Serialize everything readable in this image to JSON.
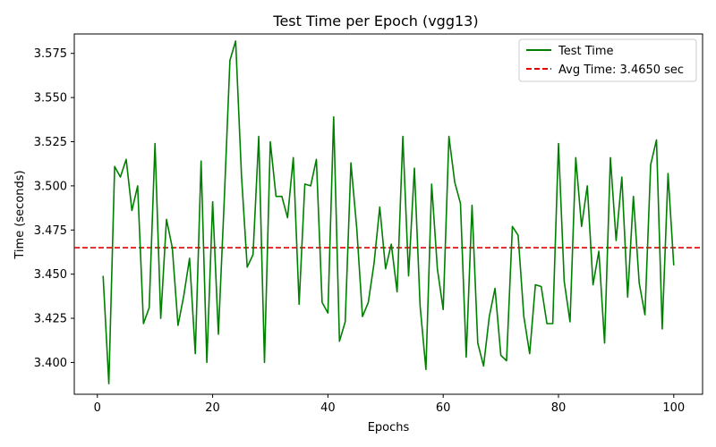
{
  "chart_data": {
    "type": "line",
    "title": "Test Time per Epoch (vgg13)",
    "xlabel": "Epochs",
    "ylabel": "Time (seconds)",
    "xlim": [
      -4,
      105
    ],
    "ylim": [
      3.382,
      3.586
    ],
    "x_ticks": [
      0,
      20,
      40,
      60,
      80,
      100
    ],
    "y_ticks": [
      3.4,
      3.425,
      3.45,
      3.475,
      3.5,
      3.525,
      3.55,
      3.575
    ],
    "y_tick_labels": [
      "3.400",
      "3.425",
      "3.450",
      "3.475",
      "3.500",
      "3.525",
      "3.550",
      "3.575"
    ],
    "grid": false,
    "legend_position": "top-right",
    "series": [
      {
        "name": "Test Time",
        "color": "#008000",
        "style": "solid",
        "x": [
          1,
          2,
          3,
          4,
          5,
          6,
          7,
          8,
          9,
          10,
          11,
          12,
          13,
          14,
          15,
          16,
          17,
          18,
          19,
          20,
          21,
          22,
          23,
          24,
          25,
          26,
          27,
          28,
          29,
          30,
          31,
          32,
          33,
          34,
          35,
          36,
          37,
          38,
          39,
          40,
          41,
          42,
          43,
          44,
          45,
          46,
          47,
          48,
          49,
          50,
          51,
          52,
          53,
          54,
          55,
          56,
          57,
          58,
          59,
          60,
          61,
          62,
          63,
          64,
          65,
          66,
          67,
          68,
          69,
          70,
          71,
          72,
          73,
          74,
          75,
          76,
          77,
          78,
          79,
          80,
          81,
          82,
          83,
          84,
          85,
          86,
          87,
          88,
          89,
          90,
          91,
          92,
          93,
          94,
          95,
          96,
          97,
          98,
          99,
          100
        ],
        "values": [
          3.449,
          3.388,
          3.511,
          3.505,
          3.515,
          3.486,
          3.5,
          3.422,
          3.431,
          3.524,
          3.425,
          3.481,
          3.465,
          3.421,
          3.438,
          3.459,
          3.405,
          3.514,
          3.4,
          3.491,
          3.416,
          3.49,
          3.571,
          3.582,
          3.506,
          3.454,
          3.461,
          3.528,
          3.4,
          3.525,
          3.494,
          3.494,
          3.482,
          3.516,
          3.433,
          3.501,
          3.5,
          3.515,
          3.434,
          3.428,
          3.539,
          3.412,
          3.423,
          3.513,
          3.476,
          3.426,
          3.434,
          3.456,
          3.488,
          3.453,
          3.467,
          3.44,
          3.528,
          3.449,
          3.51,
          3.432,
          3.396,
          3.501,
          3.453,
          3.43,
          3.528,
          3.502,
          3.49,
          3.403,
          3.489,
          3.411,
          3.398,
          3.426,
          3.442,
          3.404,
          3.401,
          3.477,
          3.472,
          3.426,
          3.405,
          3.444,
          3.443,
          3.422,
          3.422,
          3.524,
          3.446,
          3.423,
          3.516,
          3.477,
          3.5,
          3.444,
          3.463,
          3.411,
          3.516,
          3.469,
          3.505,
          3.437,
          3.494,
          3.445,
          3.427,
          3.512,
          3.526,
          3.419,
          3.507,
          3.455
        ]
      }
    ],
    "reference_lines": [
      {
        "name": "Avg Time: 3.4650 sec",
        "y": 3.465,
        "color": "#e00000",
        "style": "dashed"
      }
    ]
  }
}
